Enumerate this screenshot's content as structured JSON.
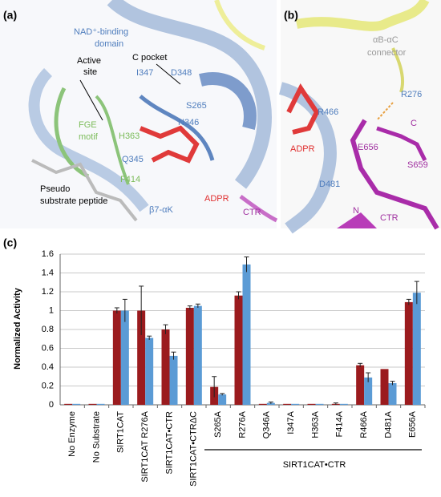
{
  "panels": {
    "a": {
      "title": "(a)",
      "labels": [
        "NAD⁺-binding",
        "domain",
        "Active",
        "site",
        "C pocket",
        "I347",
        "D348",
        "S265",
        "N346",
        "FGE",
        "motif",
        "H363",
        "Q345",
        "F414",
        "Pseudo",
        "substrate peptide",
        "β7-αK",
        "ADPR",
        "CTR"
      ]
    },
    "b": {
      "title": "(b)",
      "labels": [
        "αB-αC",
        "connector",
        "R276",
        "R466",
        "ADPR",
        "E656",
        "C",
        "S659",
        "D481",
        "N",
        "CTR"
      ]
    },
    "c": {
      "title": "(c)"
    }
  },
  "chart_data": {
    "type": "bar",
    "y_label": "Normalized Activity",
    "categories": [
      "No Enzyme",
      "No Substrate",
      "SIRT1CAT",
      "SIRT1CAT R276A",
      "SIRT1CAT•CTR",
      "SIRT1CAT•CTRΔC",
      "S265A",
      "R276A",
      "Q346A",
      "I347A",
      "H363A",
      "F414A",
      "R466A",
      "D481A",
      "E656A"
    ],
    "group_label": "SIRT1CAT•CTR",
    "series": [
      {
        "color": "#9b1b1e",
        "values": [
          0.01,
          0.01,
          1.0,
          1.0,
          0.8,
          1.03,
          0.19,
          1.16,
          0.01,
          0.01,
          0.01,
          0.01,
          0.42,
          0.38,
          1.09
        ],
        "errors": [
          null,
          null,
          0.03,
          0.26,
          0.05,
          0.02,
          0.11,
          0.04,
          null,
          null,
          null,
          0.01,
          0.02,
          null,
          0.03
        ]
      },
      {
        "color": "#5b9bd5",
        "values": [
          0.01,
          0.01,
          1.0,
          0.71,
          0.52,
          1.05,
          0.11,
          1.49,
          0.02,
          0.01,
          0.01,
          0.01,
          0.29,
          0.23,
          1.19
        ],
        "errors": [
          null,
          null,
          0.12,
          0.02,
          0.04,
          0.02,
          0.01,
          0.08,
          0.01,
          null,
          null,
          null,
          0.05,
          0.02,
          0.12
        ]
      }
    ],
    "ylim": [
      0,
      1.6
    ],
    "yticks": [
      0,
      0.2,
      0.4,
      0.6,
      0.8,
      1,
      1.2,
      1.4,
      1.6
    ],
    "grid": true
  }
}
